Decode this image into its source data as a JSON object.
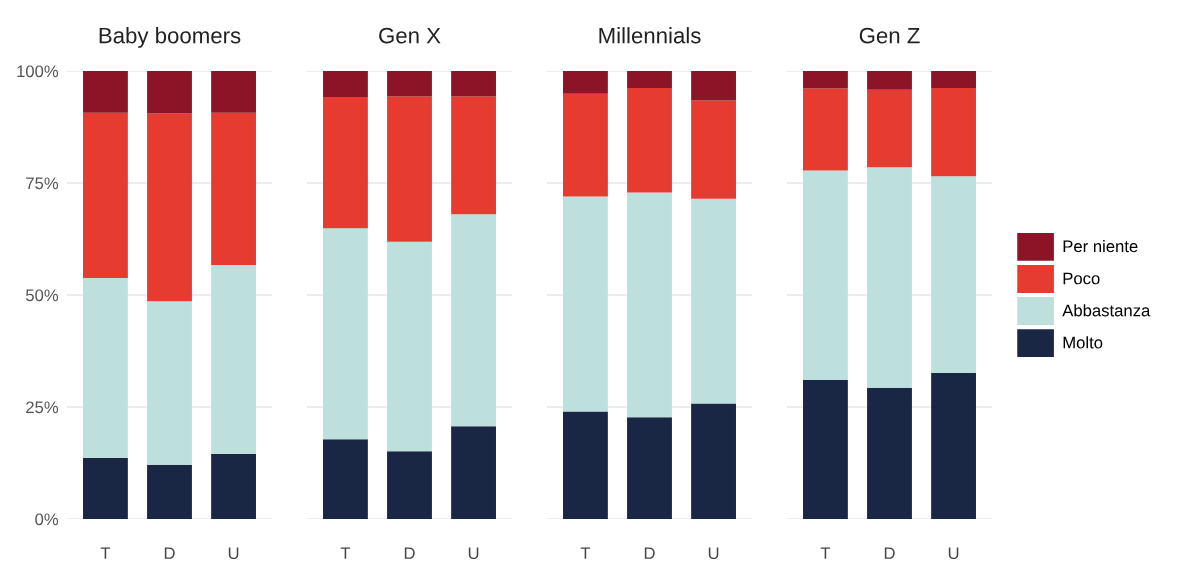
{
  "chart_data": [
    {
      "type": "bar",
      "title": "Baby boomers",
      "categories": [
        "T",
        "D",
        "U"
      ],
      "stacked": true,
      "ylim": [
        0,
        100
      ],
      "yticks": [
        {
          "value": 0,
          "label": "0%"
        },
        {
          "value": 25,
          "label": "25%"
        },
        {
          "value": 50,
          "label": "50%"
        },
        {
          "value": 75,
          "label": "75%"
        },
        {
          "value": 100,
          "label": "100%"
        }
      ],
      "grid": "y",
      "series": [
        {
          "color": "#1a2744",
          "values": [
            13.6,
            12.1,
            14.5
          ]
        },
        {
          "color": "#bde0dc",
          "values": [
            40.2,
            36.5,
            42.2
          ]
        },
        {
          "color": "#e63b31",
          "values": [
            36.9,
            41.9,
            34.0
          ]
        },
        {
          "color": "#8b1527",
          "values": [
            9.3,
            9.5,
            9.3
          ]
        }
      ]
    },
    {
      "type": "bar",
      "title": "Gen X",
      "categories": [
        "T",
        "D",
        "U"
      ],
      "stacked": true,
      "ylim": [
        0,
        100
      ],
      "yticks": [
        0,
        25,
        50,
        75,
        100
      ],
      "grid": "y",
      "tick_labels": "x",
      "series": [
        {
          "color": "#1a2744",
          "values": [
            17.8,
            15.1,
            20.7
          ]
        },
        {
          "color": "#bde0dc",
          "values": [
            47.1,
            46.8,
            47.3
          ]
        },
        {
          "color": "#e63b31",
          "values": [
            29.3,
            32.4,
            26.3
          ]
        },
        {
          "color": "#8b1527",
          "values": [
            5.8,
            5.7,
            5.7
          ]
        }
      ]
    },
    {
      "type": "bar",
      "title": "Millennials",
      "categories": [
        "T",
        "D",
        "U"
      ],
      "stacked": true,
      "ylim": [
        0,
        100
      ],
      "yticks": [
        0,
        25,
        50,
        75,
        100
      ],
      "grid": "y",
      "tick_labels": "x",
      "series": [
        {
          "color": "#1a2744",
          "values": [
            24.0,
            22.7,
            25.8
          ]
        },
        {
          "color": "#bde0dc",
          "values": [
            48.0,
            50.2,
            45.7
          ]
        },
        {
          "color": "#e63b31",
          "values": [
            22.9,
            23.3,
            21.9
          ]
        },
        {
          "color": "#8b1527",
          "values": [
            5.1,
            3.8,
            6.6
          ]
        }
      ]
    },
    {
      "type": "bar",
      "title": "Gen Z",
      "categories": [
        "T",
        "D",
        "U"
      ],
      "stacked": true,
      "ylim": [
        0,
        100
      ],
      "yticks": [
        0,
        25,
        50,
        75,
        100
      ],
      "grid": "y",
      "legend": "right",
      "tick_labels": "x",
      "series": [
        {
          "name": "Molto",
          "color": "#1a2744",
          "values": [
            31.0,
            29.3,
            32.6
          ]
        },
        {
          "name": "Abbastanza",
          "color": "#bde0dc",
          "values": [
            46.8,
            49.2,
            43.9
          ]
        },
        {
          "name": "Poco",
          "color": "#e63b31",
          "values": [
            18.3,
            17.3,
            19.7
          ]
        },
        {
          "name": "Per niente",
          "color": "#8b1527",
          "values": [
            3.9,
            4.2,
            3.8
          ]
        }
      ]
    }
  ]
}
